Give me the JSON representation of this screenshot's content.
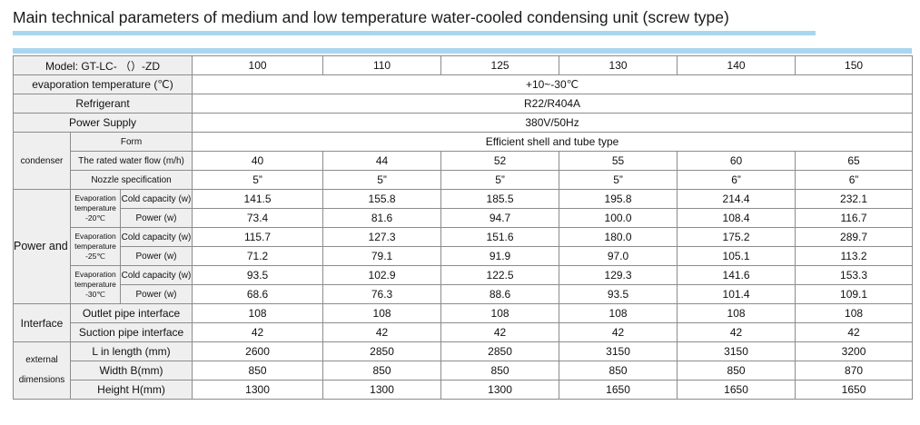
{
  "title": "Main technical parameters of medium and low temperature water-cooled condensing unit (screw type)",
  "header": {
    "model_label": "Model:  GT-LC- （）-ZD",
    "models": [
      "100",
      "110",
      "125",
      "130",
      "140",
      "150"
    ]
  },
  "evaporation": {
    "label": "evaporation temperature (℃)",
    "value": "+10~-30℃"
  },
  "refrigerant": {
    "label": "Refrigerant",
    "value": "R22/R404A"
  },
  "power_supply": {
    "label": "Power Supply",
    "value": "380V/50Hz"
  },
  "condenser": {
    "group_label": "condenser",
    "form_label": "Form",
    "form_value": "Efficient shell and tube type",
    "flow_label": "The rated water flow (m/h)",
    "flow": [
      "40",
      "44",
      "52",
      "55",
      "60",
      "65"
    ],
    "nozzle_label": "Nozzle specification",
    "nozzle": [
      "5”",
      "5”",
      "5”",
      "5”",
      "6”",
      "6”"
    ]
  },
  "capacity": {
    "group_label": "Power and cooling capacity",
    "cold_label": "Cold capacity (w)",
    "power_label": "Power (w)",
    "temps": [
      {
        "label": "Evaporation temperature -20℃",
        "cold": [
          "141.5",
          "155.8",
          "185.5",
          "195.8",
          "214.4",
          "232.1"
        ],
        "power": [
          "73.4",
          "81.6",
          "94.7",
          "100.0",
          "108.4",
          "116.7"
        ]
      },
      {
        "label": "Evaporation temperature -25℃",
        "cold": [
          "115.7",
          "127.3",
          "151.6",
          "180.0",
          "175.2",
          "289.7"
        ],
        "power": [
          "71.2",
          "79.1",
          "91.9",
          "97.0",
          "105.1",
          "113.2"
        ]
      },
      {
        "label": "Evaporation temperature -30℃",
        "cold": [
          "93.5",
          "102.9",
          "122.5",
          "129.3",
          "141.6",
          "153.3"
        ],
        "power": [
          "68.6",
          "76.3",
          "88.6",
          "93.5",
          "101.4",
          "109.1"
        ]
      }
    ]
  },
  "interface": {
    "group_label": "Interface",
    "outlet_label": "Outlet pipe interface",
    "outlet": [
      "108",
      "108",
      "108",
      "108",
      "108",
      "108"
    ],
    "suction_label": "Suction pipe interface",
    "suction": [
      "42",
      "42",
      "42",
      "42",
      "42",
      "42"
    ]
  },
  "dimensions": {
    "group_label": "external dimensions",
    "length_label": "L in length (mm)",
    "length": [
      "2600",
      "2850",
      "2850",
      "3150",
      "3150",
      "3200"
    ],
    "width_label": "Width B(mm)",
    "width": [
      "850",
      "850",
      "850",
      "850",
      "850",
      "870"
    ],
    "height_label": "Height H(mm)",
    "height": [
      "1300",
      "1300",
      "1300",
      "1650",
      "1650",
      "1650"
    ]
  }
}
